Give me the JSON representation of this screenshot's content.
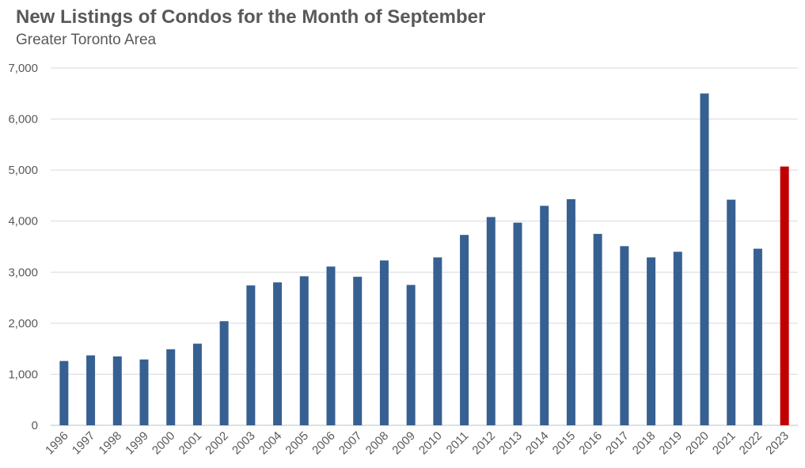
{
  "chart_data": {
    "type": "bar",
    "title": "New Listings of Condos for the Month of September",
    "subtitle": "Greater Toronto Area",
    "xlabel": "",
    "ylabel": "",
    "categories": [
      "1996",
      "1997",
      "1998",
      "1999",
      "2000",
      "2001",
      "2002",
      "2003",
      "2004",
      "2005",
      "2006",
      "2007",
      "2008",
      "2009",
      "2010",
      "2011",
      "2012",
      "2013",
      "2014",
      "2015",
      "2016",
      "2017",
      "2018",
      "2019",
      "2020",
      "2021",
      "2022",
      "2023"
    ],
    "values": [
      1260,
      1370,
      1350,
      1290,
      1490,
      1600,
      2040,
      2740,
      2800,
      2920,
      3110,
      2910,
      3230,
      2750,
      3290,
      3730,
      4080,
      3970,
      4300,
      4430,
      3750,
      3510,
      3290,
      3400,
      6500,
      4420,
      3460,
      5070
    ],
    "ylim": [
      0,
      7000
    ],
    "yticks": [
      0,
      1000,
      2000,
      3000,
      4000,
      5000,
      6000,
      7000
    ],
    "ytick_labels": [
      "0",
      "1,000",
      "2,000",
      "3,000",
      "4,000",
      "5,000",
      "6,000",
      "7,000"
    ],
    "grid": true,
    "bar_color": "#376092",
    "highlight_color": "#C00000",
    "highlight_category": "2023"
  }
}
